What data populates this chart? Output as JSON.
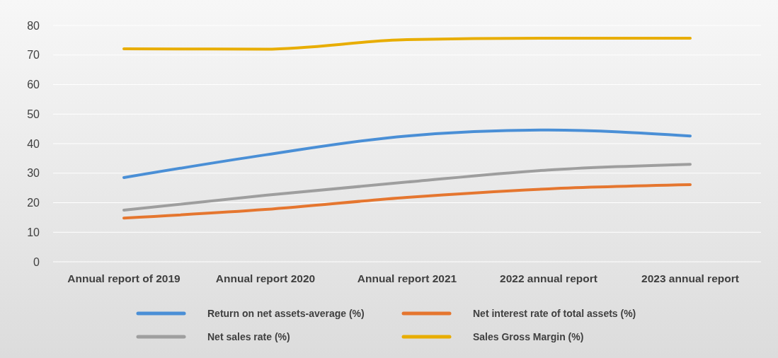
{
  "chart_data": {
    "type": "line",
    "categories": [
      "Annual report of 2019",
      "Annual report 2020",
      "Annual report 2021",
      "2022 annual report",
      "2023 annual report"
    ],
    "series": [
      {
        "name": "Return on net assets-average (%)",
        "color": "#4a8fd6",
        "values": [
          28.5,
          36.2,
          42.6,
          44.6,
          42.6
        ]
      },
      {
        "name": "Net interest rate of total assets (%)",
        "color": "#e5762f",
        "values": [
          14.8,
          17.7,
          21.8,
          24.7,
          26.1
        ]
      },
      {
        "name": "Net sales rate (%)",
        "color": "#9e9e9e",
        "values": [
          17.5,
          22.5,
          27,
          31.1,
          33
        ]
      },
      {
        "name": "Sales Gross Margin (%)",
        "color": "#e8ad00",
        "values": [
          72.1,
          72,
          75.2,
          75.7,
          75.7
        ]
      }
    ],
    "ylim": [
      0,
      80
    ],
    "yticks": [
      0,
      10,
      20,
      30,
      40,
      50,
      60,
      70,
      80
    ],
    "grid": "y",
    "legend": "bottom",
    "marker": "none",
    "line_style": "solid"
  }
}
